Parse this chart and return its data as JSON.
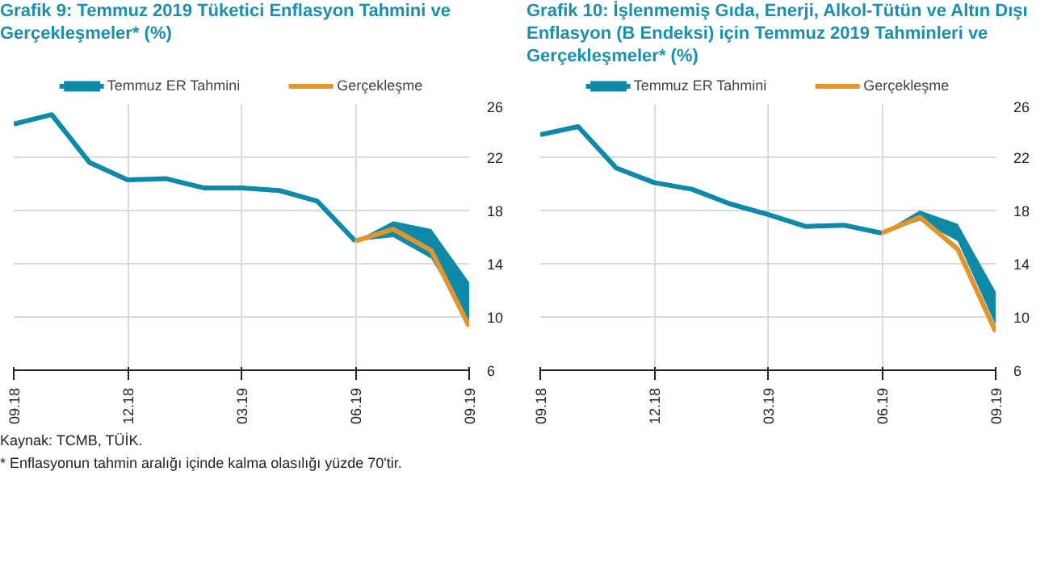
{
  "chart_data": [
    {
      "type": "line",
      "title": "Grafik 9: Temmuz 2019 Tüketici Enflasyon Tahmini ve Gerçekleşmeler* (%)",
      "categories": [
        "09.18",
        null,
        null,
        "12.18",
        null,
        null,
        "03.19",
        null,
        null,
        "06.19",
        null,
        null,
        "09.19"
      ],
      "series": [
        {
          "name": "Temmuz ER Tahmini",
          "color": "#0e8aa8",
          "values": [
            24.5,
            25.2,
            21.6,
            20.3,
            20.4,
            19.7,
            19.7,
            19.5,
            18.7,
            15.7,
            null,
            null,
            null
          ],
          "lower": [
            null,
            null,
            null,
            null,
            null,
            null,
            null,
            null,
            null,
            15.7,
            16.0,
            14.4,
            9.6
          ],
          "upper": [
            null,
            null,
            null,
            null,
            null,
            null,
            null,
            null,
            null,
            15.7,
            17.2,
            16.6,
            12.6
          ]
        },
        {
          "name": "Gerçekleşme",
          "color": "#e0962c",
          "values": [
            null,
            null,
            null,
            null,
            null,
            null,
            null,
            null,
            null,
            15.7,
            16.6,
            15.0,
            9.3
          ]
        }
      ],
      "ylim": [
        6,
        26
      ],
      "yticks": [
        6,
        10,
        14,
        18,
        22,
        26
      ],
      "grid": true,
      "legend": "top",
      "annotations": [
        "Kaynak: TCMB, TÜİK.",
        "* Enflasyonun tahmin aralığı içinde kalma olasılığı yüzde 70'tir."
      ]
    },
    {
      "type": "line",
      "title": "Grafik 10: İşlenmemiş Gıda, Enerji, Alkol-Tütün ve Altın Dışı Enflasyon (B Endeksi) için Temmuz 2019 Tahminleri ve Gerçekleşmeler* (%)",
      "categories": [
        "09.18",
        null,
        null,
        "12.18",
        null,
        null,
        "03.19",
        null,
        null,
        "06.19",
        null,
        null,
        "09.19"
      ],
      "series": [
        {
          "name": "Temmuz ER Tahmini",
          "color": "#0e8aa8",
          "values": [
            23.7,
            24.3,
            21.2,
            20.1,
            19.6,
            18.5,
            17.7,
            16.8,
            16.9,
            16.3,
            null,
            null,
            null
          ],
          "lower": [
            null,
            null,
            null,
            null,
            null,
            null,
            null,
            null,
            null,
            16.3,
            17.25,
            15.7,
            9.4
          ],
          "upper": [
            null,
            null,
            null,
            null,
            null,
            null,
            null,
            null,
            null,
            16.3,
            18.0,
            17.0,
            11.9
          ]
        },
        {
          "name": "Gerçekleşme",
          "color": "#e0962c",
          "values": [
            null,
            null,
            null,
            null,
            null,
            null,
            null,
            null,
            null,
            16.3,
            17.5,
            15.1,
            8.9
          ]
        }
      ],
      "ylim": [
        6,
        26
      ],
      "yticks": [
        6,
        10,
        14,
        18,
        22,
        26
      ],
      "grid": true,
      "legend": "top"
    }
  ]
}
